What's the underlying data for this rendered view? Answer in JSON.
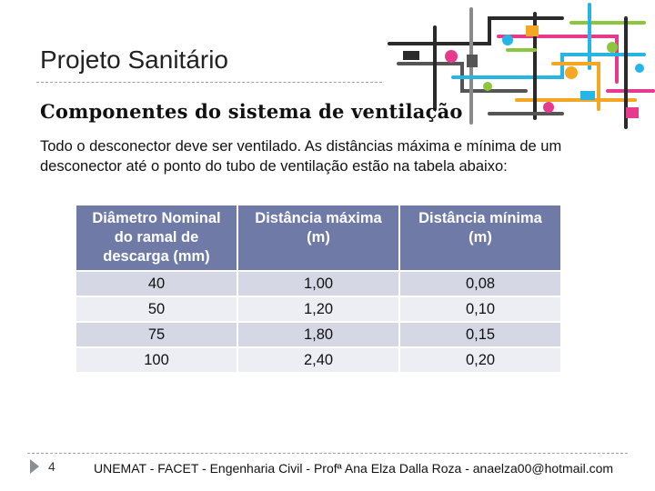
{
  "slide": {
    "title": "Projeto Sanitário",
    "subtitle": "Componentes do sistema de ventilação",
    "body": "Todo o desconector deve ser ventilado. As distâncias máxima e mínima de um desconector até o ponto do tubo de ventilação estão na tabela abaixo:",
    "page_number": "4",
    "footer": "UNEMAT - FACET - Engenharia Civil - Profª Ana Elza Dalla Roza - anaelza00@hotmail.com"
  },
  "table": {
    "headers": [
      "Diâmetro Nominal do ramal de descarga (mm)",
      "Distância máxima (m)",
      "Distância mínima (m)"
    ],
    "rows": [
      [
        "40",
        "1,00",
        "0,08"
      ],
      [
        "50",
        "1,20",
        "0,10"
      ],
      [
        "75",
        "1,80",
        "0,15"
      ],
      [
        "100",
        "2,40",
        "0,20"
      ]
    ]
  },
  "colors": {
    "header_bg": "#6f7aa6",
    "row_odd": "#d5d8e4",
    "row_even": "#eceef4"
  },
  "decor": {
    "illustration": "pipes-illustration"
  }
}
